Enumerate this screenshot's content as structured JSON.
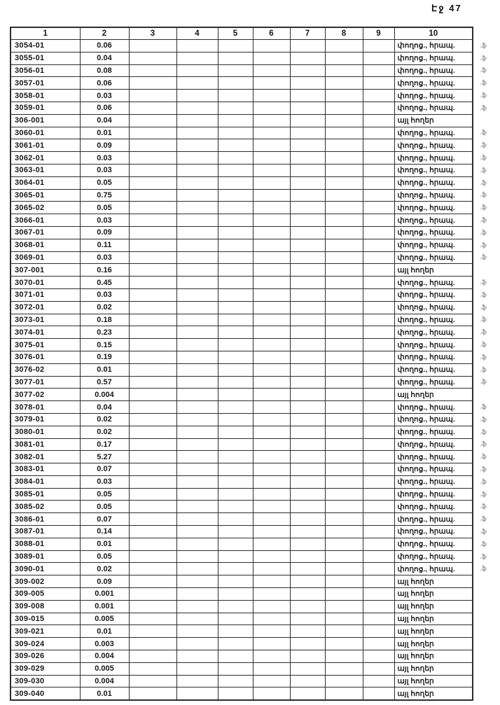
{
  "page": {
    "label": "Էջ 47"
  },
  "table": {
    "columns": [
      "1",
      "2",
      "3",
      "4",
      "5",
      "6",
      "7",
      "8",
      "9",
      "10"
    ],
    "empty_column_count": 7,
    "land_use_types": {
      "street": "փողոց., հրապ.",
      "other": "այլ հողեր"
    },
    "margin_mark_text": ".ֆ",
    "rows": [
      {
        "code": "3054-01",
        "value": "0.06",
        "use": "street"
      },
      {
        "code": "3055-01",
        "value": "0.04",
        "use": "street"
      },
      {
        "code": "3056-01",
        "value": "0.08",
        "use": "street"
      },
      {
        "code": "3057-01",
        "value": "0.06",
        "use": "street"
      },
      {
        "code": "3058-01",
        "value": "0.03",
        "use": "street"
      },
      {
        "code": "3059-01",
        "value": "0.06",
        "use": "street"
      },
      {
        "code": "306-001",
        "value": "0.04",
        "use": "other"
      },
      {
        "code": "3060-01",
        "value": "0.01",
        "use": "street"
      },
      {
        "code": "3061-01",
        "value": "0.09",
        "use": "street"
      },
      {
        "code": "3062-01",
        "value": "0.03",
        "use": "street"
      },
      {
        "code": "3063-01",
        "value": "0.03",
        "use": "street"
      },
      {
        "code": "3064-01",
        "value": "0.05",
        "use": "street"
      },
      {
        "code": "3065-01",
        "value": "0.75",
        "use": "street"
      },
      {
        "code": "3065-02",
        "value": "0.05",
        "use": "street"
      },
      {
        "code": "3066-01",
        "value": "0.03",
        "use": "street"
      },
      {
        "code": "3067-01",
        "value": "0.09",
        "use": "street"
      },
      {
        "code": "3068-01",
        "value": "0.11",
        "use": "street"
      },
      {
        "code": "3069-01",
        "value": "0.03",
        "use": "street"
      },
      {
        "code": "307-001",
        "value": "0.16",
        "use": "other"
      },
      {
        "code": "3070-01",
        "value": "0.45",
        "use": "street"
      },
      {
        "code": "3071-01",
        "value": "0.03",
        "use": "street"
      },
      {
        "code": "3072-01",
        "value": "0.02",
        "use": "street"
      },
      {
        "code": "3073-01",
        "value": "0.18",
        "use": "street"
      },
      {
        "code": "3074-01",
        "value": "0.23",
        "use": "street"
      },
      {
        "code": "3075-01",
        "value": "0.15",
        "use": "street"
      },
      {
        "code": "3076-01",
        "value": "0.19",
        "use": "street"
      },
      {
        "code": "3076-02",
        "value": "0.01",
        "use": "street"
      },
      {
        "code": "3077-01",
        "value": "0.57",
        "use": "street"
      },
      {
        "code": "3077-02",
        "value": "0.004",
        "use": "other"
      },
      {
        "code": "3078-01",
        "value": "0.04",
        "use": "street"
      },
      {
        "code": "3079-01",
        "value": "0.02",
        "use": "street"
      },
      {
        "code": "3080-01",
        "value": "0.02",
        "use": "street"
      },
      {
        "code": "3081-01",
        "value": "0.17",
        "use": "street"
      },
      {
        "code": "3082-01",
        "value": "5.27",
        "use": "street"
      },
      {
        "code": "3083-01",
        "value": "0.07",
        "use": "street"
      },
      {
        "code": "3084-01",
        "value": "0.03",
        "use": "street"
      },
      {
        "code": "3085-01",
        "value": "0.05",
        "use": "street"
      },
      {
        "code": "3085-02",
        "value": "0.05",
        "use": "street"
      },
      {
        "code": "3086-01",
        "value": "0.07",
        "use": "street"
      },
      {
        "code": "3087-01",
        "value": "0.14",
        "use": "street"
      },
      {
        "code": "3088-01",
        "value": "0.01",
        "use": "street"
      },
      {
        "code": "3089-01",
        "value": "0.05",
        "use": "street"
      },
      {
        "code": "3090-01",
        "value": "0.02",
        "use": "street"
      },
      {
        "code": "309-002",
        "value": "0.09",
        "use": "other"
      },
      {
        "code": "309-005",
        "value": "0.001",
        "use": "other"
      },
      {
        "code": "309-008",
        "value": "0.001",
        "use": "other"
      },
      {
        "code": "309-015",
        "value": "0.005",
        "use": "other"
      },
      {
        "code": "309-021",
        "value": "0.01",
        "use": "other"
      },
      {
        "code": "309-024",
        "value": "0.003",
        "use": "other"
      },
      {
        "code": "309-026",
        "value": "0.004",
        "use": "other"
      },
      {
        "code": "309-029",
        "value": "0.005",
        "use": "other"
      },
      {
        "code": "309-030",
        "value": "0.004",
        "use": "other"
      },
      {
        "code": "309-040",
        "value": "0.01",
        "use": "other"
      }
    ]
  }
}
